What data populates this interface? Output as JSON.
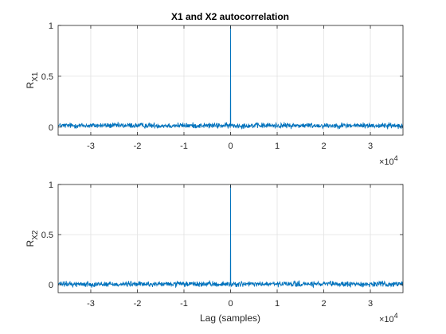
{
  "chart_data": [
    {
      "type": "line",
      "title": "X1 and X2 autocorrelation",
      "ylabel": "R",
      "ylabel_subscript": "X1",
      "xlabel": "",
      "xlim": [
        -3.7,
        3.7
      ],
      "ylim": [
        -0.08,
        1
      ],
      "x_scale_exponent_label": "×10",
      "x_scale_exponent": "4",
      "x_ticks": [
        -3,
        -2,
        -1,
        0,
        1,
        2,
        3
      ],
      "x_tick_labels": [
        "-3",
        "-2",
        "-1",
        "0",
        "1",
        "2",
        "3"
      ],
      "y_ticks": [
        0,
        0.5,
        1
      ],
      "y_tick_labels": [
        "0",
        "0.5",
        "1"
      ],
      "grid": true,
      "series": [
        {
          "color": "#0072bd",
          "peak": {
            "x": 0,
            "y": 1
          },
          "noise_baseline": 0.015,
          "noise_amplitude": 0.04
        }
      ]
    },
    {
      "type": "line",
      "title": "",
      "ylabel": "R",
      "ylabel_subscript": "X2",
      "xlabel": "Lag (samples)",
      "xlim": [
        -3.7,
        3.7
      ],
      "ylim": [
        -0.08,
        1
      ],
      "x_scale_exponent_label": "×10",
      "x_scale_exponent": "4",
      "x_ticks": [
        -3,
        -2,
        -1,
        0,
        1,
        2,
        3
      ],
      "x_tick_labels": [
        "-3",
        "-2",
        "-1",
        "0",
        "1",
        "2",
        "3"
      ],
      "y_ticks": [
        0,
        0.5,
        1
      ],
      "y_tick_labels": [
        "0",
        "0.5",
        "1"
      ],
      "grid": true,
      "series": [
        {
          "color": "#0072bd",
          "peak": {
            "x": 0,
            "y": 1
          },
          "noise_baseline": 0.005,
          "noise_amplitude": 0.04
        }
      ]
    }
  ]
}
